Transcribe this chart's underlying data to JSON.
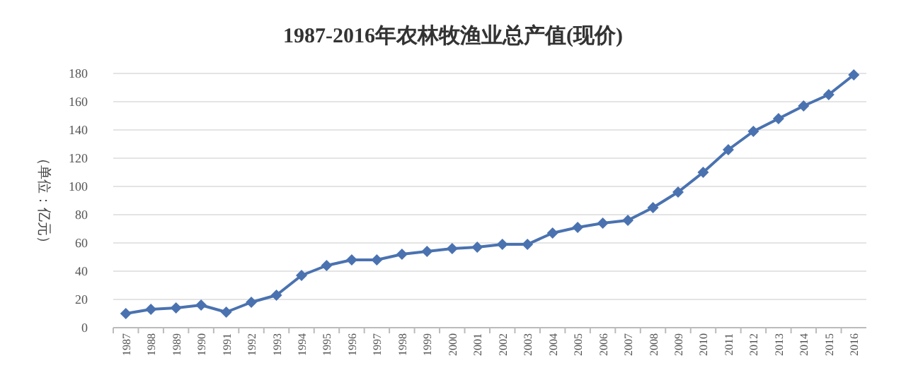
{
  "chart_data": {
    "type": "line",
    "title": "1987-2016年农林牧渔业总产值(现价)",
    "ylabel": "（单位：亿元）",
    "categories": [
      "1987",
      "1988",
      "1989",
      "1990",
      "1991",
      "1992",
      "1993",
      "1994",
      "1995",
      "1996",
      "1997",
      "1998",
      "1999",
      "2000",
      "2001",
      "2002",
      "2003",
      "2004",
      "2005",
      "2006",
      "2007",
      "2008",
      "2009",
      "2010",
      "2011",
      "2012",
      "2013",
      "2014",
      "2015",
      "2016"
    ],
    "series": [
      {
        "color": "#4a72b0",
        "values": [
          10,
          13,
          14,
          16,
          11,
          18,
          23,
          37,
          44,
          48,
          48,
          52,
          54,
          56,
          57,
          59,
          59,
          67,
          71,
          74,
          76,
          85,
          96,
          110,
          126,
          139,
          148,
          157,
          165,
          179
        ]
      }
    ],
    "ylim": [
      0,
      180
    ],
    "yticks": [
      0,
      20,
      40,
      60,
      80,
      100,
      120,
      140,
      160,
      180
    ],
    "grid": "y",
    "marker": "diamond"
  }
}
